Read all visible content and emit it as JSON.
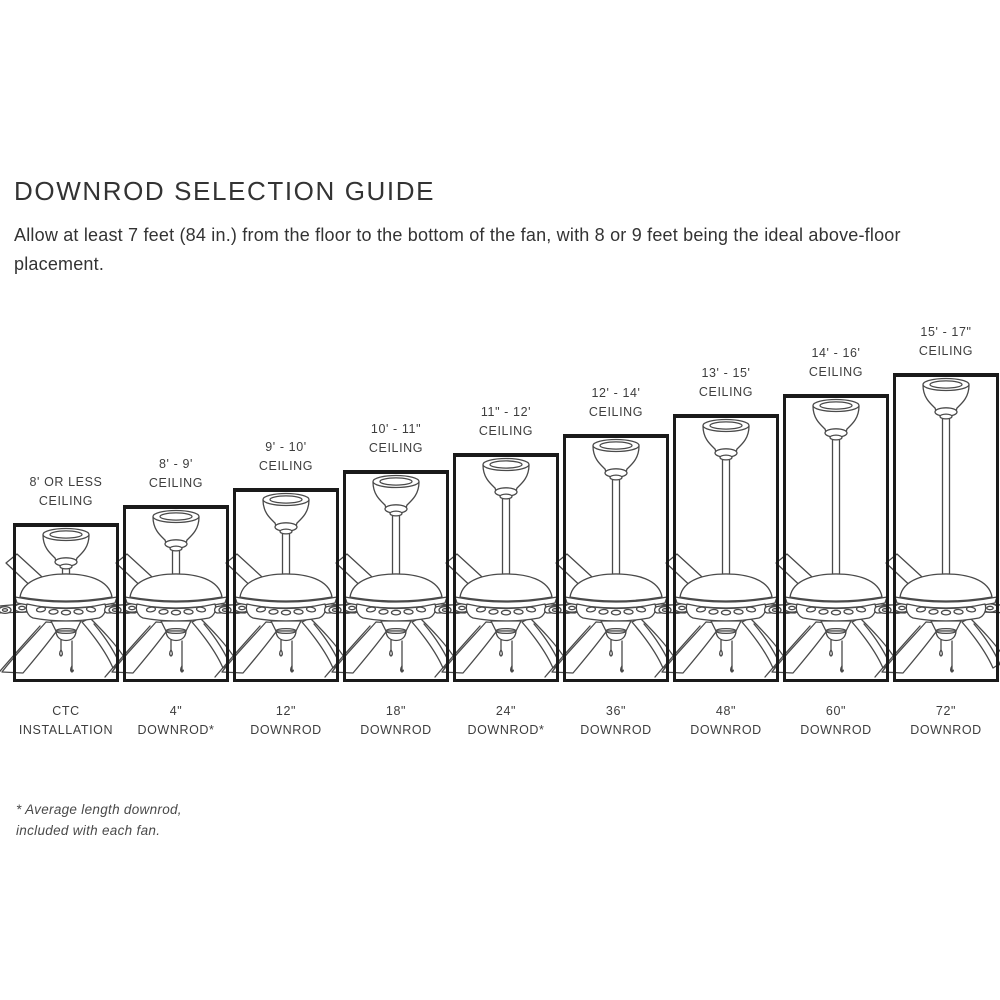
{
  "title": "DOWNROD SELECTION GUIDE",
  "intro": "Allow at least 7 feet (84 in.) from the floor to the bottom of the fan, with 8 or 9 feet being the ideal above-floor placement.",
  "diagram": {
    "columns": [
      {
        "ceiling": [
          "8' OR LESS",
          "CEILING"
        ],
        "downrod": [
          "CTC",
          "INSTALLATION"
        ]
      },
      {
        "ceiling": [
          "8' - 9'",
          "CEILING"
        ],
        "downrod": [
          "4\"",
          "DOWNROD*"
        ]
      },
      {
        "ceiling": [
          "9' - 10'",
          "CEILING"
        ],
        "downrod": [
          "12\"",
          "DOWNROD"
        ]
      },
      {
        "ceiling": [
          "10' - 11\"",
          "CEILING"
        ],
        "downrod": [
          "18\"",
          "DOWNROD"
        ]
      },
      {
        "ceiling": [
          "11\" - 12'",
          "CEILING"
        ],
        "downrod": [
          "24\"",
          "DOWNROD*"
        ]
      },
      {
        "ceiling": [
          "12' - 14'",
          "CEILING"
        ],
        "downrod": [
          "36\"",
          "DOWNROD"
        ]
      },
      {
        "ceiling": [
          "13' - 15'",
          "CEILING"
        ],
        "downrod": [
          "48\"",
          "DOWNROD"
        ]
      },
      {
        "ceiling": [
          "14' - 16'",
          "CEILING"
        ],
        "downrod": [
          "60\"",
          "DOWNROD"
        ]
      },
      {
        "ceiling": [
          "15' - 17\"",
          "CEILING"
        ],
        "downrod": [
          "72\"",
          "DOWNROD"
        ]
      }
    ]
  },
  "footnote": {
    "lines": [
      "* Average length downrod,",
      "included with each fan."
    ]
  },
  "colors": {
    "background": "#ffffff",
    "line_art": "#4a4a4a",
    "box_border": "#1a1a1a",
    "text": "#3d3d3d",
    "title": "#333333"
  }
}
